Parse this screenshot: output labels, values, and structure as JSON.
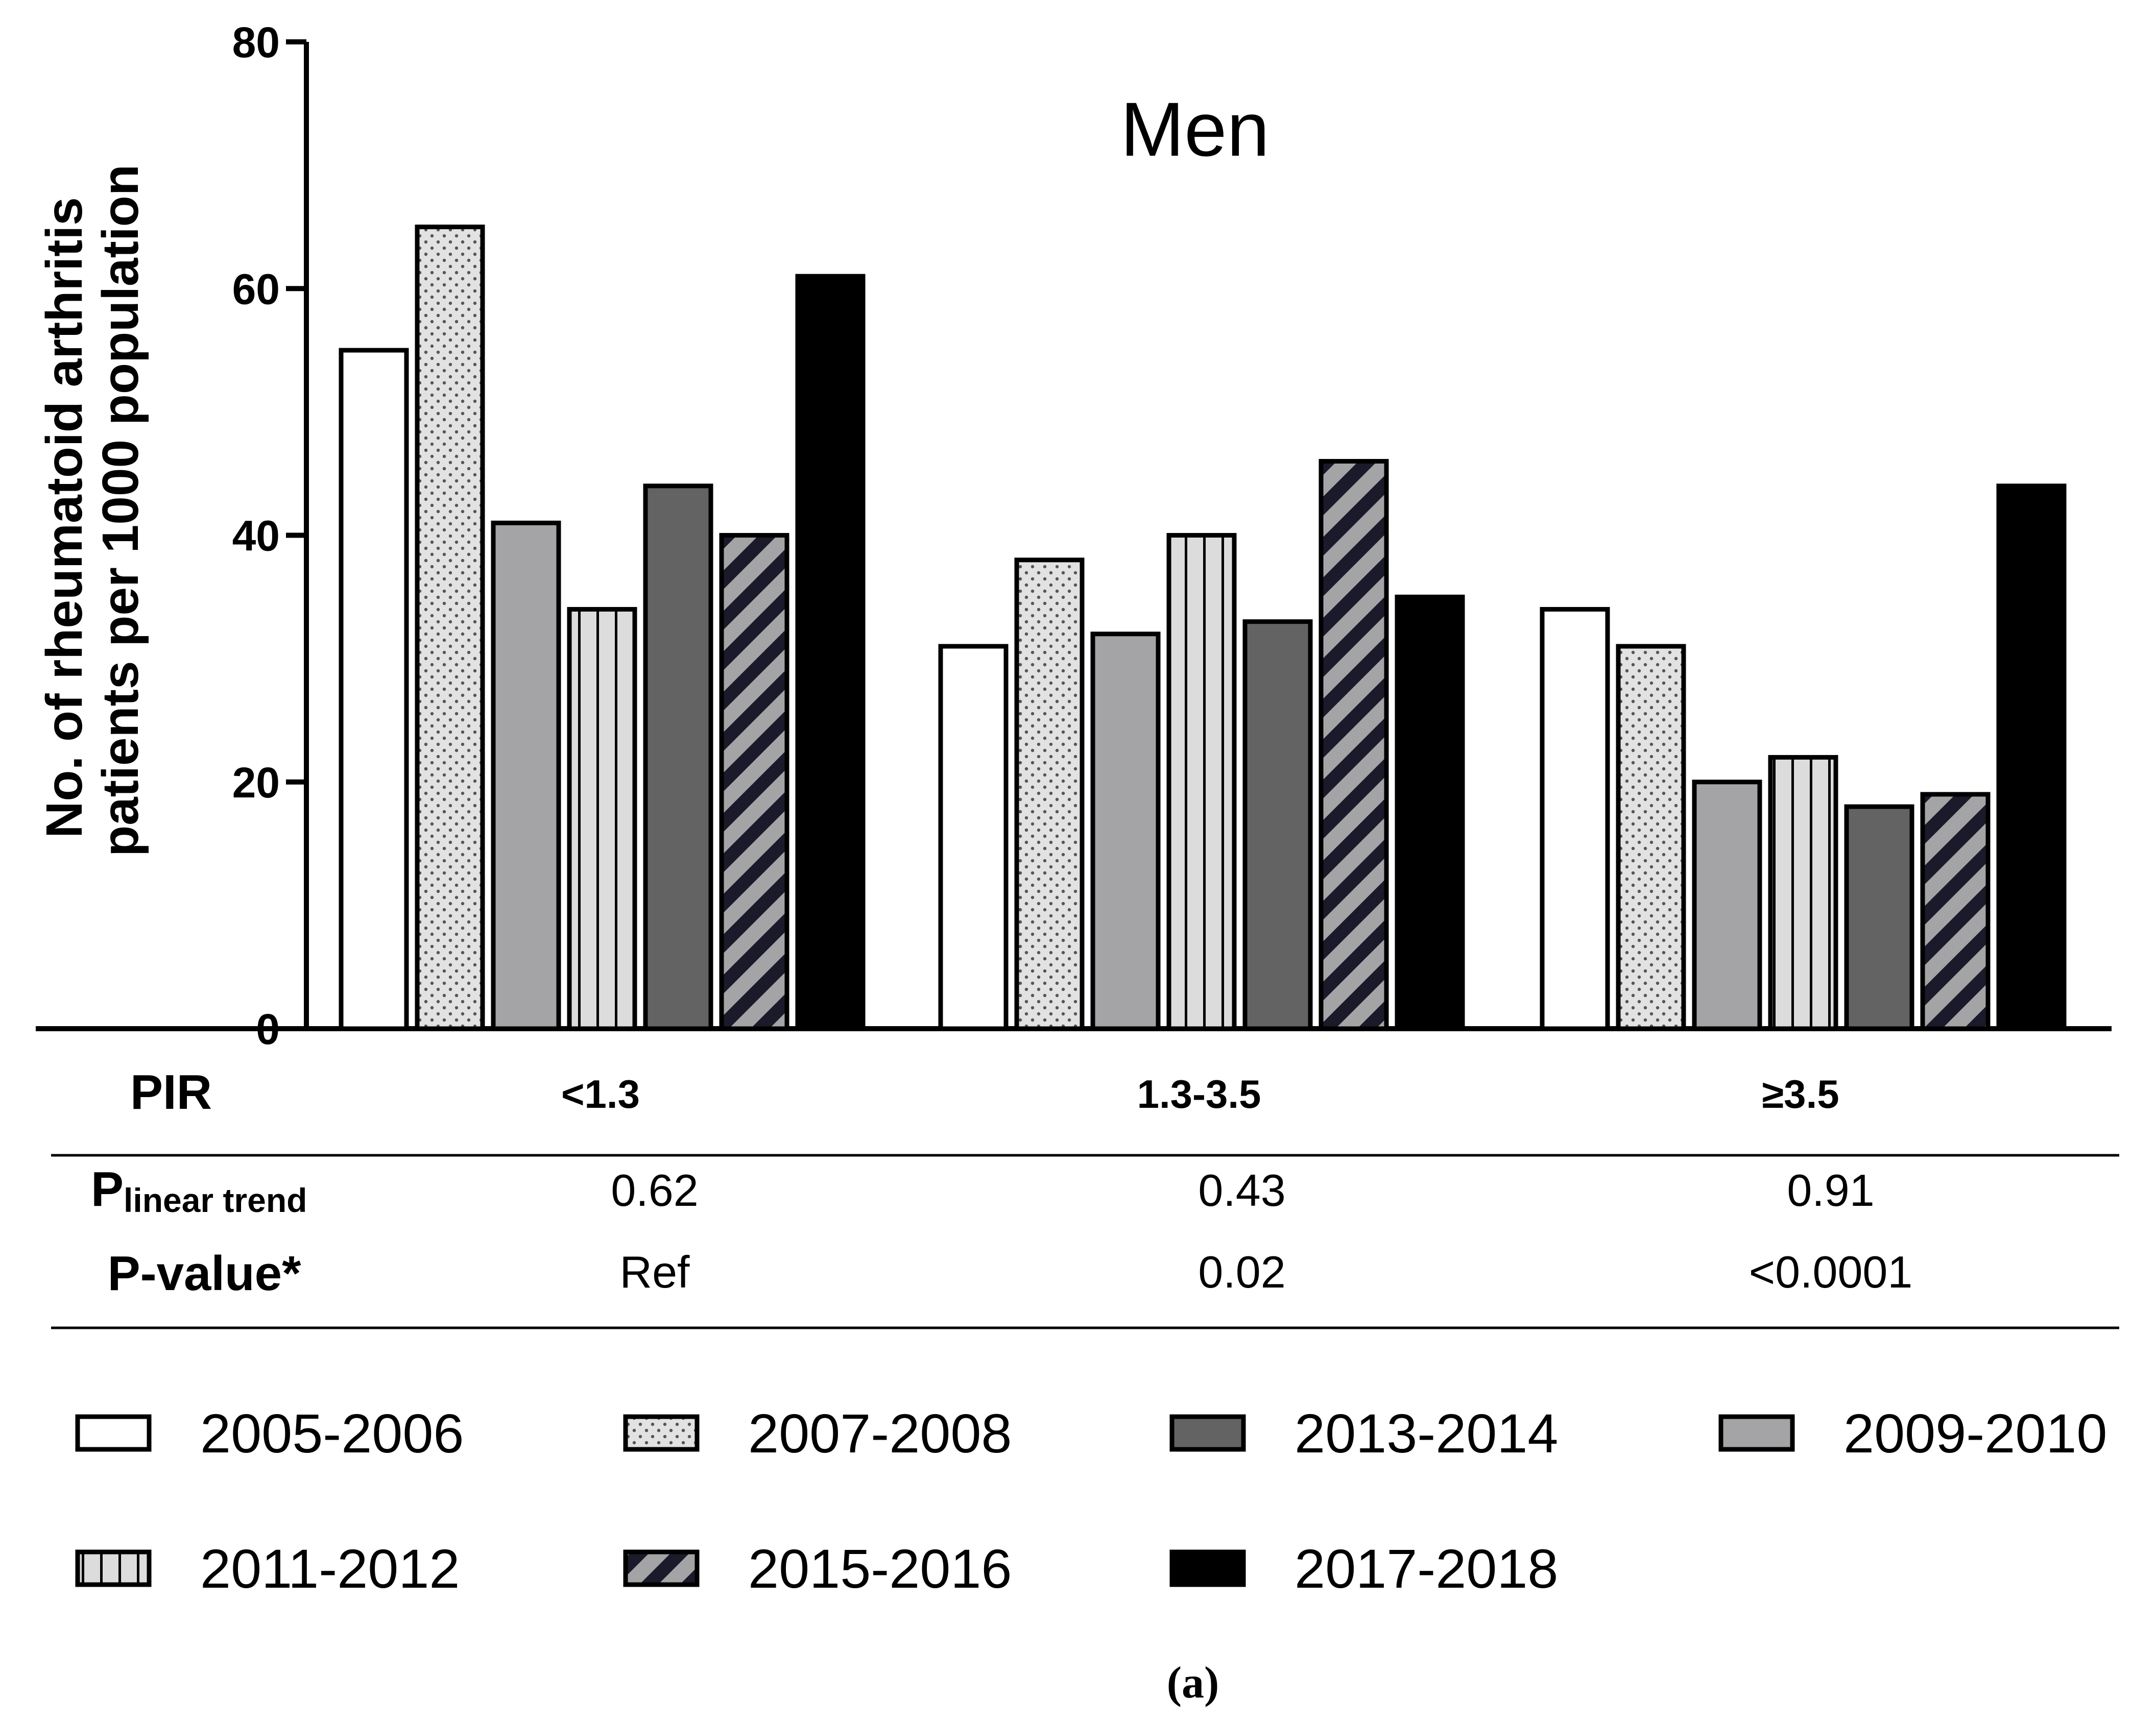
{
  "chart_data": {
    "type": "bar",
    "title": "Men",
    "ylabel_lines": [
      "No. of rheumatoid arthritis",
      "patients per 1000 population"
    ],
    "xlabel": "PIR",
    "ylim": [
      0,
      80
    ],
    "yticks": [
      "0",
      "20",
      "40",
      "60",
      "80"
    ],
    "categories": [
      "<1.3",
      "1.3-3.5",
      "≥3.5"
    ],
    "series": [
      {
        "name": "2005-2006",
        "fill": "#ffffff",
        "pattern": "none",
        "values": [
          55,
          31,
          34
        ]
      },
      {
        "name": "2007-2008",
        "fill": "#e2e2e2",
        "pattern": "dots",
        "values": [
          65,
          38,
          31
        ]
      },
      {
        "name": "2009-2010",
        "fill": "#a4a4a6",
        "pattern": "none",
        "values": [
          41,
          32,
          20
        ]
      },
      {
        "name": "2011-2012",
        "fill": "#dcdcdc",
        "pattern": "vertical-lines",
        "values": [
          34,
          40,
          22
        ]
      },
      {
        "name": "2013-2014",
        "fill": "#636363",
        "pattern": "none",
        "values": [
          44,
          33,
          18
        ]
      },
      {
        "name": "2015-2016",
        "fill": "#a4a4a6",
        "pattern": "diagonal-stripes",
        "values": [
          40,
          46,
          19
        ]
      },
      {
        "name": "2017-2018",
        "fill": "#000000",
        "pattern": "none",
        "values": [
          61,
          35,
          44
        ]
      }
    ],
    "legend_placement": "bottom",
    "legend_order": [
      "2005-2006",
      "2007-2008",
      "2013-2014",
      "2009-2010",
      "2011-2012",
      "2015-2016",
      "2017-2018"
    ],
    "grid": false
  },
  "table": {
    "rows": [
      {
        "header_main": "P",
        "header_sub": "linear trend",
        "values": [
          "0.62",
          "0.43",
          "0.91"
        ]
      },
      {
        "header_main": "P-value*",
        "header_sub": "",
        "values": [
          "Ref",
          "0.02",
          "<0.0001"
        ]
      }
    ]
  },
  "caption": "(a)"
}
